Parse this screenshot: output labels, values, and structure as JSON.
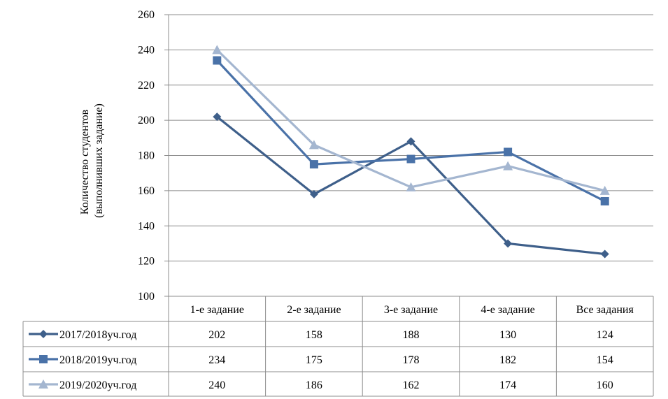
{
  "chart_data": {
    "type": "line",
    "ylabel_line1": "Количество студентов",
    "ylabel_line2": "(выполнивших задание)",
    "ylim": [
      100,
      260
    ],
    "yticks": [
      100,
      120,
      140,
      160,
      180,
      200,
      220,
      240,
      260
    ],
    "grid": true,
    "legend_placement": "data table",
    "categories": [
      "1-е задание",
      "2-е задание",
      "3-е задание",
      "4-е задание",
      "Все задания"
    ],
    "series": [
      {
        "name": "2017/2018уч.год",
        "values": [
          202,
          158,
          188,
          130,
          124
        ],
        "color": "#3E5F8A",
        "marker": "diamond"
      },
      {
        "name": "2018/2019уч.год",
        "values": [
          234,
          175,
          178,
          182,
          154
        ],
        "color": "#4A72A8",
        "marker": "square"
      },
      {
        "name": "2019/2020уч.год",
        "values": [
          240,
          186,
          162,
          174,
          160
        ],
        "color": "#A4B6D0",
        "marker": "triangle"
      }
    ]
  }
}
